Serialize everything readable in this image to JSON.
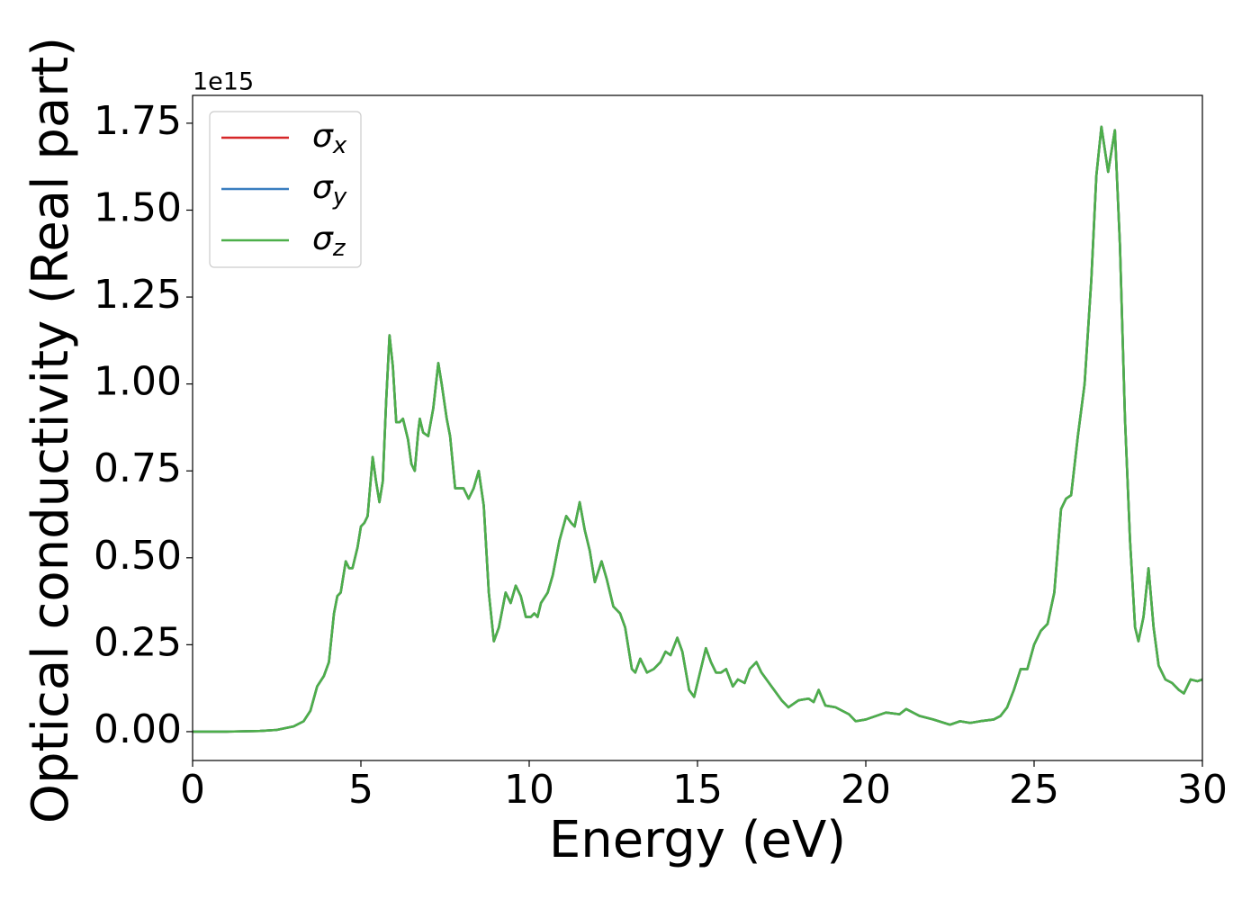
{
  "chart_data": {
    "type": "line",
    "y_label": "Optical conductivity (Real part)",
    "x_label": "Energy (eV)",
    "offset_label": "1e15",
    "xlim": [
      0,
      30
    ],
    "xticks": [
      0,
      5,
      10,
      15,
      20,
      25,
      30
    ],
    "ylim": [
      -0.083,
      1.83
    ],
    "yticks": [
      {
        "value": 0,
        "label": "0.00"
      },
      {
        "value": 0.25,
        "label": "0.25"
      },
      {
        "value": 0.5,
        "label": "0.50"
      },
      {
        "value": 0.75,
        "label": "0.75"
      },
      {
        "value": 1.0,
        "label": "1.00"
      },
      {
        "value": 1.25,
        "label": "1.25"
      },
      {
        "value": 1.5,
        "label": "1.50"
      },
      {
        "value": 1.75,
        "label": "1.75"
      }
    ],
    "legend": "upper left",
    "x": [
      0,
      1,
      2,
      2.5,
      3.0,
      3.3,
      3.5,
      3.7,
      3.9,
      4.05,
      4.2,
      4.3,
      4.4,
      4.55,
      4.65,
      4.75,
      4.9,
      5.0,
      5.1,
      5.2,
      5.35,
      5.45,
      5.55,
      5.65,
      5.75,
      5.85,
      5.95,
      6.05,
      6.15,
      6.25,
      6.4,
      6.5,
      6.6,
      6.7,
      6.75,
      6.85,
      7.0,
      7.15,
      7.3,
      7.4,
      7.55,
      7.65,
      7.8,
      7.95,
      8.05,
      8.2,
      8.35,
      8.5,
      8.65,
      8.8,
      8.95,
      9.1,
      9.3,
      9.45,
      9.6,
      9.75,
      9.9,
      10.05,
      10.15,
      10.25,
      10.35,
      10.55,
      10.7,
      10.9,
      11.1,
      11.25,
      11.35,
      11.5,
      11.65,
      11.8,
      11.95,
      12.15,
      12.3,
      12.5,
      12.7,
      12.85,
      13.05,
      13.15,
      13.3,
      13.5,
      13.7,
      13.9,
      14.05,
      14.2,
      14.4,
      14.55,
      14.75,
      14.9,
      15.05,
      15.25,
      15.4,
      15.55,
      15.7,
      15.85,
      16.05,
      16.2,
      16.4,
      16.55,
      16.75,
      16.9,
      17.2,
      17.5,
      17.7,
      18.0,
      18.3,
      18.45,
      18.6,
      18.8,
      19.1,
      19.5,
      19.7,
      20.0,
      20.3,
      20.6,
      21.0,
      21.2,
      21.6,
      22.0,
      22.5,
      22.8,
      23.1,
      23.4,
      23.8,
      24.0,
      24.2,
      24.4,
      24.6,
      24.8,
      25.0,
      25.2,
      25.4,
      25.6,
      25.8,
      25.95,
      26.1,
      26.3,
      26.5,
      26.7,
      26.85,
      27.0,
      27.2,
      27.4,
      27.55,
      27.7,
      27.85,
      28.0,
      28.1,
      28.25,
      28.4,
      28.55,
      28.7,
      28.9,
      29.1,
      29.3,
      29.45,
      29.65,
      29.85,
      30.0
    ],
    "series": [
      {
        "name": "σx",
        "color": "#d62728",
        "values": [
          0,
          0.0,
          0.002,
          0.005,
          0.015,
          0.03,
          0.06,
          0.13,
          0.16,
          0.2,
          0.34,
          0.39,
          0.4,
          0.49,
          0.47,
          0.47,
          0.53,
          0.59,
          0.6,
          0.62,
          0.79,
          0.72,
          0.66,
          0.72,
          0.95,
          1.14,
          1.05,
          0.89,
          0.89,
          0.9,
          0.84,
          0.77,
          0.75,
          0.86,
          0.9,
          0.86,
          0.85,
          0.93,
          1.06,
          1.0,
          0.9,
          0.85,
          0.7,
          0.7,
          0.7,
          0.67,
          0.7,
          0.75,
          0.65,
          0.4,
          0.26,
          0.3,
          0.4,
          0.37,
          0.42,
          0.39,
          0.33,
          0.33,
          0.34,
          0.33,
          0.37,
          0.4,
          0.45,
          0.55,
          0.62,
          0.6,
          0.59,
          0.66,
          0.58,
          0.52,
          0.43,
          0.49,
          0.44,
          0.36,
          0.34,
          0.3,
          0.18,
          0.17,
          0.21,
          0.17,
          0.18,
          0.2,
          0.23,
          0.22,
          0.27,
          0.23,
          0.12,
          0.1,
          0.16,
          0.24,
          0.2,
          0.17,
          0.17,
          0.18,
          0.13,
          0.15,
          0.14,
          0.18,
          0.2,
          0.17,
          0.13,
          0.09,
          0.07,
          0.09,
          0.095,
          0.085,
          0.12,
          0.075,
          0.07,
          0.05,
          0.03,
          0.035,
          0.045,
          0.055,
          0.05,
          0.065,
          0.045,
          0.035,
          0.02,
          0.03,
          0.025,
          0.03,
          0.035,
          0.045,
          0.07,
          0.12,
          0.18,
          0.18,
          0.25,
          0.29,
          0.31,
          0.4,
          0.64,
          0.67,
          0.68,
          0.85,
          1.0,
          1.3,
          1.6,
          1.74,
          1.61,
          1.73,
          1.4,
          0.9,
          0.55,
          0.3,
          0.26,
          0.33,
          0.47,
          0.3,
          0.19,
          0.15,
          0.14,
          0.12,
          0.11,
          0.15,
          0.145,
          0.15
        ]
      },
      {
        "name": "σy",
        "color": "#3a7ebf",
        "values": [
          0,
          0.0,
          0.002,
          0.005,
          0.015,
          0.03,
          0.06,
          0.13,
          0.16,
          0.2,
          0.34,
          0.39,
          0.4,
          0.49,
          0.47,
          0.47,
          0.53,
          0.59,
          0.6,
          0.62,
          0.79,
          0.72,
          0.66,
          0.72,
          0.95,
          1.14,
          1.05,
          0.89,
          0.89,
          0.9,
          0.84,
          0.77,
          0.75,
          0.86,
          0.9,
          0.86,
          0.85,
          0.93,
          1.06,
          1.0,
          0.9,
          0.85,
          0.7,
          0.7,
          0.7,
          0.67,
          0.7,
          0.75,
          0.65,
          0.4,
          0.26,
          0.3,
          0.4,
          0.37,
          0.42,
          0.39,
          0.33,
          0.33,
          0.34,
          0.33,
          0.37,
          0.4,
          0.45,
          0.55,
          0.62,
          0.6,
          0.59,
          0.66,
          0.58,
          0.52,
          0.43,
          0.49,
          0.44,
          0.36,
          0.34,
          0.3,
          0.18,
          0.17,
          0.21,
          0.17,
          0.18,
          0.2,
          0.23,
          0.22,
          0.27,
          0.23,
          0.12,
          0.1,
          0.16,
          0.24,
          0.2,
          0.17,
          0.17,
          0.18,
          0.13,
          0.15,
          0.14,
          0.18,
          0.2,
          0.17,
          0.13,
          0.09,
          0.07,
          0.09,
          0.095,
          0.085,
          0.12,
          0.075,
          0.07,
          0.05,
          0.03,
          0.035,
          0.045,
          0.055,
          0.05,
          0.065,
          0.045,
          0.035,
          0.02,
          0.03,
          0.025,
          0.03,
          0.035,
          0.045,
          0.07,
          0.12,
          0.18,
          0.18,
          0.25,
          0.29,
          0.31,
          0.4,
          0.64,
          0.67,
          0.68,
          0.85,
          1.0,
          1.3,
          1.6,
          1.74,
          1.61,
          1.73,
          1.4,
          0.9,
          0.55,
          0.3,
          0.26,
          0.33,
          0.47,
          0.3,
          0.19,
          0.15,
          0.14,
          0.12,
          0.11,
          0.15,
          0.145,
          0.15
        ]
      },
      {
        "name": "σz",
        "color": "#4daf4a",
        "values": [
          0,
          0.0,
          0.002,
          0.005,
          0.015,
          0.03,
          0.06,
          0.13,
          0.16,
          0.2,
          0.34,
          0.39,
          0.4,
          0.49,
          0.47,
          0.47,
          0.53,
          0.59,
          0.6,
          0.62,
          0.79,
          0.72,
          0.66,
          0.72,
          0.95,
          1.14,
          1.05,
          0.89,
          0.89,
          0.9,
          0.84,
          0.77,
          0.75,
          0.86,
          0.9,
          0.86,
          0.85,
          0.93,
          1.06,
          1.0,
          0.9,
          0.85,
          0.7,
          0.7,
          0.7,
          0.67,
          0.7,
          0.75,
          0.65,
          0.4,
          0.26,
          0.3,
          0.4,
          0.37,
          0.42,
          0.39,
          0.33,
          0.33,
          0.34,
          0.33,
          0.37,
          0.4,
          0.45,
          0.55,
          0.62,
          0.6,
          0.59,
          0.66,
          0.58,
          0.52,
          0.43,
          0.49,
          0.44,
          0.36,
          0.34,
          0.3,
          0.18,
          0.17,
          0.21,
          0.17,
          0.18,
          0.2,
          0.23,
          0.22,
          0.27,
          0.23,
          0.12,
          0.1,
          0.16,
          0.24,
          0.2,
          0.17,
          0.17,
          0.18,
          0.13,
          0.15,
          0.14,
          0.18,
          0.2,
          0.17,
          0.13,
          0.09,
          0.07,
          0.09,
          0.095,
          0.085,
          0.12,
          0.075,
          0.07,
          0.05,
          0.03,
          0.035,
          0.045,
          0.055,
          0.05,
          0.065,
          0.045,
          0.035,
          0.02,
          0.03,
          0.025,
          0.03,
          0.035,
          0.045,
          0.07,
          0.12,
          0.18,
          0.18,
          0.25,
          0.29,
          0.31,
          0.4,
          0.64,
          0.67,
          0.68,
          0.85,
          1.0,
          1.3,
          1.6,
          1.74,
          1.61,
          1.73,
          1.4,
          0.9,
          0.55,
          0.3,
          0.26,
          0.33,
          0.47,
          0.3,
          0.19,
          0.15,
          0.14,
          0.12,
          0.11,
          0.15,
          0.145,
          0.15
        ]
      }
    ]
  }
}
